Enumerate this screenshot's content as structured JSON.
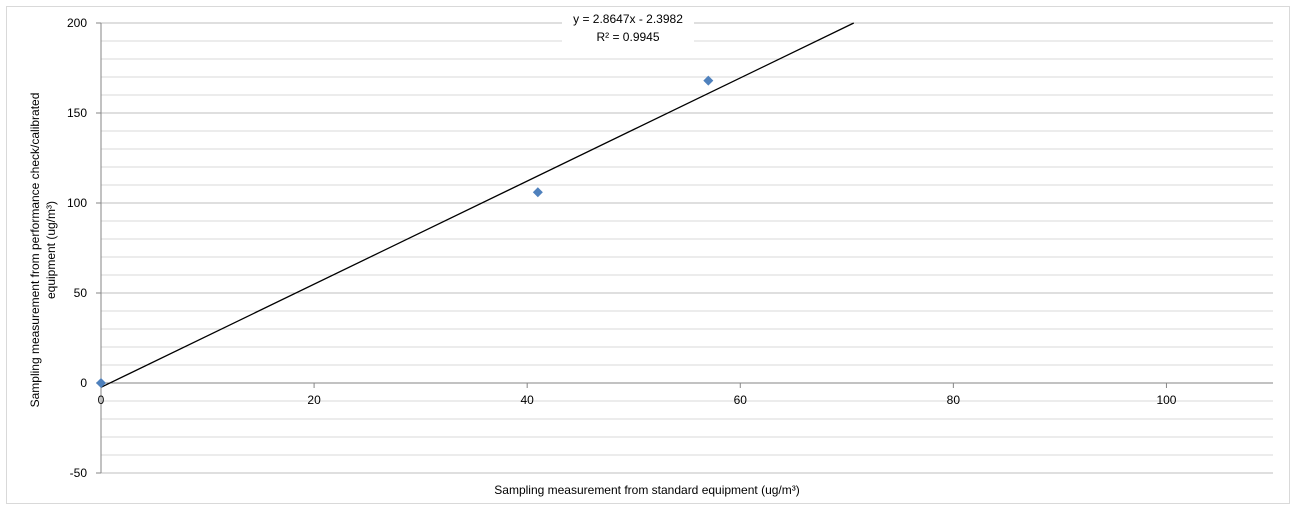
{
  "chart_data": {
    "type": "scatter",
    "xlabel": "Sampling measurement from standard equipment  (ug/m³)",
    "ylabel_lines": [
      "Sampling measurement from performance check/calibrated",
      "equipment (ug/m³)"
    ],
    "xlim": [
      0,
      110
    ],
    "ylim": [
      -50,
      200
    ],
    "x_ticks": [
      0,
      20,
      40,
      60,
      80,
      100
    ],
    "y_ticks": [
      -50,
      0,
      50,
      100,
      150,
      200
    ],
    "y_minor_step": 10,
    "grid": true,
    "legend": "none",
    "series": [
      {
        "marker": "diamond",
        "color": "#4f81bd",
        "points": [
          {
            "x": 0,
            "y": 0
          },
          {
            "x": 41,
            "y": 106
          },
          {
            "x": 57,
            "y": 168
          }
        ]
      }
    ],
    "trendline": {
      "slope": 2.8647,
      "intercept": -2.3982,
      "color": "#000000",
      "equation": "y = 2.8647x - 2.3982",
      "r_squared": "R² = 0.9945"
    }
  }
}
